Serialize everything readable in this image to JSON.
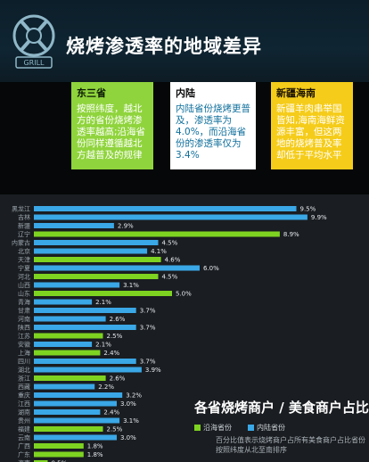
{
  "header": {
    "title": "烧烤渗透率的地域差异",
    "logo_text": "GRILL"
  },
  "cards": [
    {
      "title": "东三省",
      "body": "按照纬度，越北方的省份烧烤渗透率越高;沿海省份同样遵循越北方越普及的规律"
    },
    {
      "title": "内陆",
      "body": "内陆省份烧烤更普及，渗透率为4.0%，而沿海省份的渗透率仅为3.4%"
    },
    {
      "title": "新疆海南",
      "body": "新疆羊肉串举国皆知,海南海鲜资源丰富，但这两地的烧烤普及率却低于平均水平"
    }
  ],
  "legend": {
    "title": "各省烧烤商户 / 美食商户占比",
    "coastal": "沿海省份",
    "inland": "内陆省份",
    "note": "百分比值表示烧烤商户占所有美食商户占比省份按照纬度从北至南排序"
  },
  "colors": {
    "coastal": "#7ed321",
    "inland": "#3aa7e6",
    "card1": "#8fd43c",
    "card3": "#f5cc19"
  },
  "chart_data": {
    "type": "bar",
    "orientation": "horizontal",
    "unit": "%",
    "items": [
      {
        "label": "黑龙江",
        "value": 9.5,
        "group": "inland"
      },
      {
        "label": "吉林",
        "value": 9.9,
        "group": "inland"
      },
      {
        "label": "新疆",
        "value": 2.9,
        "group": "inland"
      },
      {
        "label": "辽宁",
        "value": 8.9,
        "group": "coastal"
      },
      {
        "label": "内蒙古",
        "value": 4.5,
        "group": "inland"
      },
      {
        "label": "北京",
        "value": 4.1,
        "group": "inland"
      },
      {
        "label": "天津",
        "value": 4.6,
        "group": "coastal"
      },
      {
        "label": "宁夏",
        "value": 6.0,
        "group": "inland"
      },
      {
        "label": "河北",
        "value": 4.5,
        "group": "coastal"
      },
      {
        "label": "山西",
        "value": 3.1,
        "group": "inland"
      },
      {
        "label": "山东",
        "value": 5.0,
        "group": "coastal"
      },
      {
        "label": "青海",
        "value": 2.1,
        "group": "inland"
      },
      {
        "label": "甘肃",
        "value": 3.7,
        "group": "inland"
      },
      {
        "label": "河南",
        "value": 2.6,
        "group": "inland"
      },
      {
        "label": "陕西",
        "value": 3.7,
        "group": "inland"
      },
      {
        "label": "江苏",
        "value": 2.5,
        "group": "coastal"
      },
      {
        "label": "安徽",
        "value": 2.1,
        "group": "inland"
      },
      {
        "label": "上海",
        "value": 2.4,
        "group": "coastal"
      },
      {
        "label": "四川",
        "value": 3.7,
        "group": "inland"
      },
      {
        "label": "湖北",
        "value": 3.9,
        "group": "inland"
      },
      {
        "label": "浙江",
        "value": 2.6,
        "group": "coastal"
      },
      {
        "label": "西藏",
        "value": 2.2,
        "group": "inland"
      },
      {
        "label": "重庆",
        "value": 3.2,
        "group": "inland"
      },
      {
        "label": "江西",
        "value": 3.0,
        "group": "inland"
      },
      {
        "label": "湖南",
        "value": 2.4,
        "group": "inland"
      },
      {
        "label": "贵州",
        "value": 3.1,
        "group": "inland"
      },
      {
        "label": "福建",
        "value": 2.5,
        "group": "coastal"
      },
      {
        "label": "云南",
        "value": 3.0,
        "group": "inland"
      },
      {
        "label": "广西",
        "value": 1.8,
        "group": "coastal"
      },
      {
        "label": "广东",
        "value": 1.8,
        "group": "coastal"
      },
      {
        "label": "海南",
        "value": 0.5,
        "group": "coastal"
      }
    ],
    "xlim": [
      0,
      10
    ]
  }
}
